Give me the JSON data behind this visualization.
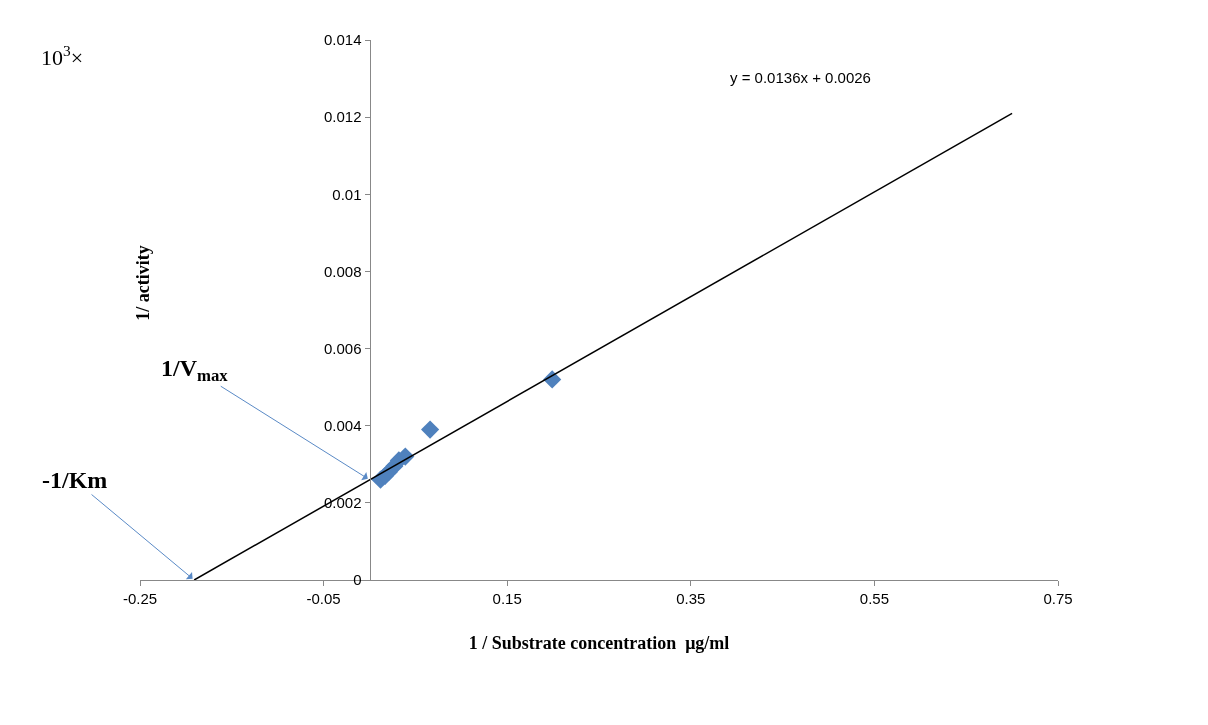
{
  "chart_data": {
    "type": "scatter",
    "xlabel": "1 / Substrate concentration  μg/ml",
    "ylabel": "1/ activity",
    "xlim": [
      -0.25,
      0.75
    ],
    "xticks": [
      -0.25,
      -0.05,
      0.15,
      0.35,
      0.55,
      0.75
    ],
    "ylim": [
      0,
      0.014
    ],
    "yticks": [
      0,
      0.002,
      0.004,
      0.006,
      0.008,
      0.01,
      0.012,
      0.014
    ],
    "marker": "diamond",
    "series": [
      {
        "color": "#4f81bd",
        "x": [
          0.012,
          0.017,
          0.021,
          0.027,
          0.032,
          0.039,
          0.066,
          0.199
        ],
        "values": [
          0.0026,
          0.0027,
          0.0028,
          0.00295,
          0.0031,
          0.0032,
          0.0039,
          0.0052
        ]
      },
      {
        "type": "line",
        "color": "#000000",
        "marker": "none",
        "x": [
          -0.191,
          0.7
        ],
        "values": [
          0,
          0.0121
        ]
      }
    ],
    "annotations": [
      "10$^{3}$×",
      "y = 0.0136x + 0.0026",
      {
        "text": "1/V$_{max}$",
        "x": 0,
        "y": 0.0026
      },
      {
        "text": "-1/Km",
        "x": -0.191,
        "y": 0
      }
    ]
  }
}
